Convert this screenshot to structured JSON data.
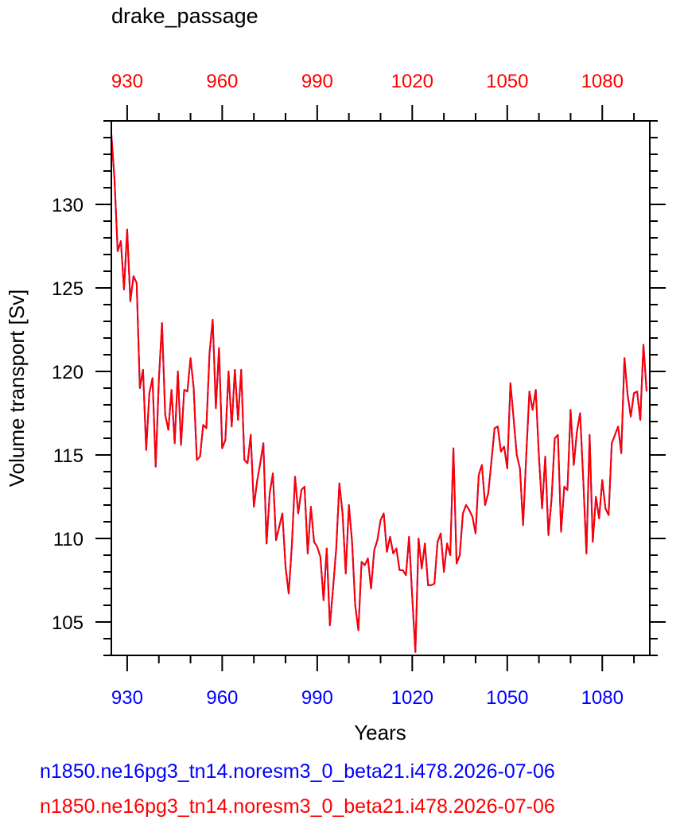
{
  "chart_data": {
    "type": "line",
    "title": "drake_passage",
    "xlabel": "Years",
    "ylabel": "Volume transport [Sv]",
    "xlim": [
      925,
      1095
    ],
    "ylim": [
      103,
      135
    ],
    "x_ticks": [
      930,
      960,
      990,
      1020,
      1050,
      1080
    ],
    "y_ticks": [
      105,
      110,
      115,
      120,
      125,
      130
    ],
    "x_minor_step": 10,
    "y_minor_step": 1,
    "bottom_axis_color": "#0000ff",
    "top_axis_color": "#ff0000",
    "x_start": 925,
    "series": [
      {
        "name": "n1850.ne16pg3_tn14.noresm3_0_beta21.i478.2026-07-06",
        "color": "#0000ff",
        "values": [
          134.2,
          131.5,
          127.2,
          127.8,
          124.9,
          128.5,
          124.2,
          125.7,
          125.3,
          119.0,
          120.1,
          115.3,
          118.7,
          119.6,
          114.3,
          119.5,
          122.9,
          117.4,
          116.5,
          118.9,
          115.7,
          120.0,
          115.6,
          118.9,
          118.8,
          120.8,
          119.0,
          114.7,
          114.9,
          116.8,
          116.6,
          121.1,
          123.1,
          117.8,
          121.4,
          115.4,
          115.9,
          120.0,
          116.7,
          120.1,
          117.1,
          120.1,
          114.7,
          114.5,
          116.2,
          111.9,
          113.4,
          114.5,
          115.7,
          109.7,
          112.7,
          113.9,
          109.9,
          110.7,
          111.5,
          108.3,
          106.7,
          109.6,
          113.7,
          111.5,
          112.9,
          113.1,
          109.1,
          111.9,
          109.8,
          109.5,
          108.9,
          106.3,
          109.4,
          104.8,
          107.0,
          109.4,
          113.3,
          111.5,
          107.9,
          112.0,
          109.8,
          106.0,
          104.5,
          108.6,
          108.4,
          108.8,
          107.0,
          109.3,
          109.9,
          111.1,
          111.5,
          109.2,
          110.1,
          109.1,
          109.4,
          108.1,
          108.1,
          107.8,
          110.1,
          106.5,
          103.2,
          110.0,
          108.2,
          109.7,
          107.2,
          107.2,
          107.3,
          109.8,
          110.3,
          108.0,
          109.7,
          109.0,
          115.4,
          108.5,
          109.0,
          111.5,
          112.0,
          111.7,
          111.3,
          110.3,
          113.8,
          114.4,
          112.0,
          112.7,
          114.6,
          116.6,
          116.7,
          115.2,
          115.5,
          114.2,
          119.3,
          117.2,
          115.0,
          114.2,
          110.8,
          115.0,
          118.8,
          117.7,
          118.9,
          114.9,
          111.8,
          114.9,
          110.2,
          112.4,
          116.0,
          116.2,
          110.4,
          113.1,
          112.9,
          117.7,
          114.4,
          116.4,
          117.5,
          113.5,
          109.1,
          116.2,
          109.8,
          112.5,
          111.2,
          113.5,
          111.8,
          111.4,
          115.7,
          116.2,
          116.7,
          115.1,
          120.8,
          118.6,
          117.3,
          118.7,
          118.8,
          117.1,
          121.6,
          118.8
        ]
      },
      {
        "name": "n1850.ne16pg3_tn14.noresm3_0_beta21.i478.2026-07-06",
        "color": "#ff0000",
        "values": [
          134.2,
          131.5,
          127.2,
          127.8,
          124.9,
          128.5,
          124.2,
          125.7,
          125.3,
          119.0,
          120.1,
          115.3,
          118.7,
          119.6,
          114.3,
          119.5,
          122.9,
          117.4,
          116.5,
          118.9,
          115.7,
          120.0,
          115.6,
          118.9,
          118.8,
          120.8,
          119.0,
          114.7,
          114.9,
          116.8,
          116.6,
          121.1,
          123.1,
          117.8,
          121.4,
          115.4,
          115.9,
          120.0,
          116.7,
          120.1,
          117.1,
          120.1,
          114.7,
          114.5,
          116.2,
          111.9,
          113.4,
          114.5,
          115.7,
          109.7,
          112.7,
          113.9,
          109.9,
          110.7,
          111.5,
          108.3,
          106.7,
          109.6,
          113.7,
          111.5,
          112.9,
          113.1,
          109.1,
          111.9,
          109.8,
          109.5,
          108.9,
          106.3,
          109.4,
          104.8,
          107.0,
          109.4,
          113.3,
          111.5,
          107.9,
          112.0,
          109.8,
          106.0,
          104.5,
          108.6,
          108.4,
          108.8,
          107.0,
          109.3,
          109.9,
          111.1,
          111.5,
          109.2,
          110.1,
          109.1,
          109.4,
          108.1,
          108.1,
          107.8,
          110.1,
          106.5,
          103.2,
          110.0,
          108.2,
          109.7,
          107.2,
          107.2,
          107.3,
          109.8,
          110.3,
          108.0,
          109.7,
          109.0,
          115.4,
          108.5,
          109.0,
          111.5,
          112.0,
          111.7,
          111.3,
          110.3,
          113.8,
          114.4,
          112.0,
          112.7,
          114.6,
          116.6,
          116.7,
          115.2,
          115.5,
          114.2,
          119.3,
          117.2,
          115.0,
          114.2,
          110.8,
          115.0,
          118.8,
          117.7,
          118.9,
          114.9,
          111.8,
          114.9,
          110.2,
          112.4,
          116.0,
          116.2,
          110.4,
          113.1,
          112.9,
          117.7,
          114.4,
          116.4,
          117.5,
          113.5,
          109.1,
          116.2,
          109.8,
          112.5,
          111.2,
          113.5,
          111.8,
          111.4,
          115.7,
          116.2,
          116.7,
          115.1,
          120.8,
          118.6,
          117.3,
          118.7,
          118.8,
          117.1,
          121.6,
          118.8
        ]
      }
    ],
    "grid": false,
    "legend_position": "bottom-left"
  }
}
